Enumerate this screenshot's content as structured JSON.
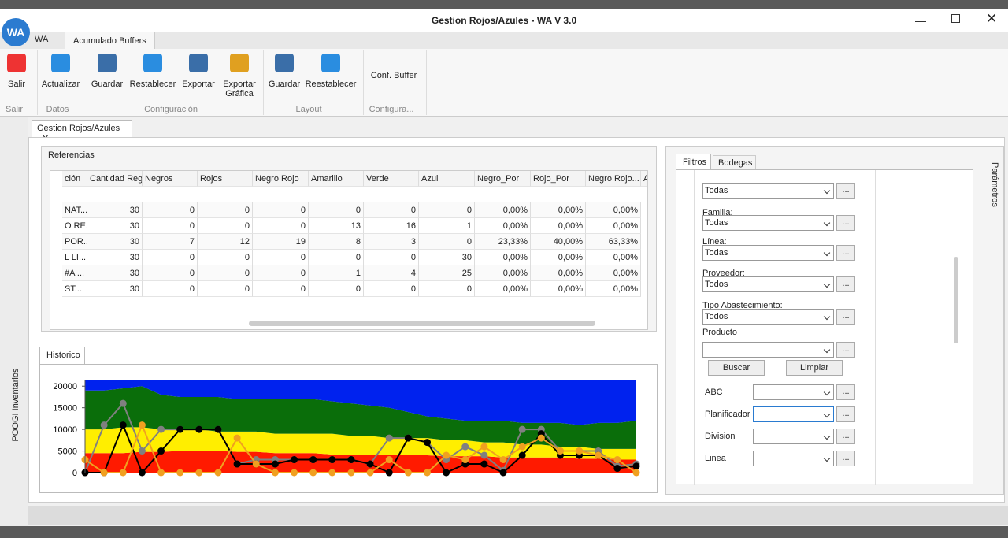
{
  "window": {
    "logo": "WA",
    "title": "Gestion Rojos/Azules - WA V 3.0"
  },
  "ribbon": {
    "tabs": [
      "WA",
      "Acumulado Buffers"
    ],
    "buttons": [
      "Salir",
      "Actualizar",
      "Guardar",
      "Restablecer",
      "Exportar",
      "Exportar Gráfica",
      "Guardar",
      "Reestablecer",
      "Conf. Buffer"
    ],
    "groups": [
      "Salir",
      "Datos",
      "Configuración",
      "Layout",
      "Configura..."
    ]
  },
  "sidebar": {
    "left": "POOGI Inventarios",
    "right": "Parámetros"
  },
  "document_tab": "Gestion Rojos/Azules",
  "referencias": {
    "title": "Referencias",
    "columns": [
      "ción",
      "Cantidad Reg",
      "Negros",
      "Rojos",
      "Negro Rojo",
      "Amarillo",
      "Verde",
      "Azul",
      "Negro_Por",
      "Rojo_Por",
      "Negro Rojo...",
      "A"
    ],
    "rows": [
      [
        "NAT...",
        "30",
        "0",
        "0",
        "0",
        "0",
        "0",
        "0",
        "0,00%",
        "0,00%",
        "0,00%"
      ],
      [
        "O RE...",
        "30",
        "0",
        "0",
        "0",
        "13",
        "16",
        "1",
        "0,00%",
        "0,00%",
        "0,00%"
      ],
      [
        "POR...",
        "30",
        "7",
        "12",
        "19",
        "8",
        "3",
        "0",
        "23,33%",
        "40,00%",
        "63,33%"
      ],
      [
        "L LI...",
        "30",
        "0",
        "0",
        "0",
        "0",
        "0",
        "30",
        "0,00%",
        "0,00%",
        "0,00%"
      ],
      [
        "#A ...",
        "30",
        "0",
        "0",
        "0",
        "1",
        "4",
        "25",
        "0,00%",
        "0,00%",
        "0,00%"
      ],
      [
        "ST...",
        "30",
        "0",
        "0",
        "0",
        "0",
        "0",
        "0",
        "0,00%",
        "0,00%",
        "0,00%"
      ]
    ]
  },
  "historico": {
    "title": "Historico"
  },
  "chart_data": {
    "type": "area",
    "stacked": true,
    "categories": [
      null,
      null,
      null,
      null,
      null,
      null,
      null,
      null,
      null,
      null,
      null,
      null,
      null,
      null,
      null,
      null,
      null,
      null,
      null,
      null,
      null,
      null,
      null,
      null,
      null,
      null,
      null,
      null,
      null,
      null
    ],
    "ylim": [
      0,
      21500
    ],
    "yticks": [
      0,
      5000,
      10000,
      15000,
      20000
    ],
    "series": [
      {
        "name": null,
        "color": "#ff1a00",
        "values": [
          4500,
          4500,
          4500,
          4800,
          4800,
          5000,
          5000,
          5000,
          4800,
          4800,
          4500,
          4500,
          4500,
          4200,
          4200,
          4000,
          4000,
          4000,
          4000,
          3800,
          3800,
          3800,
          3500,
          3500,
          3500,
          3500,
          3200,
          3200,
          3000,
          3000
        ]
      },
      {
        "name": null,
        "color": "#ffee00",
        "values": [
          5500,
          5500,
          6000,
          5700,
          5200,
          5000,
          5000,
          4500,
          4700,
          4700,
          4500,
          4500,
          4500,
          4800,
          4300,
          4500,
          4000,
          4000,
          4000,
          3700,
          3700,
          3200,
          3500,
          3000,
          3000,
          2500,
          2800,
          2300,
          2500,
          2500
        ]
      },
      {
        "name": null,
        "color": "#0a6e0a",
        "values": [
          9000,
          9000,
          9000,
          9500,
          8000,
          7500,
          7500,
          8000,
          7500,
          7500,
          8000,
          8000,
          8000,
          7500,
          7500,
          7000,
          7000,
          6000,
          5000,
          5000,
          4500,
          5000,
          5000,
          5000,
          5000,
          5500,
          5000,
          6000,
          6000,
          6500
        ]
      },
      {
        "name": null,
        "color": "#0022ee",
        "values": [
          2500,
          2500,
          2000,
          1500,
          3500,
          4000,
          4000,
          4000,
          4500,
          4500,
          4500,
          4500,
          4500,
          5000,
          5500,
          6000,
          6500,
          7500,
          8500,
          9000,
          9500,
          9500,
          9500,
          10000,
          10000,
          10000,
          10500,
          10000,
          10000,
          9500
        ]
      }
    ],
    "lines": [
      {
        "name": null,
        "color": "#808080",
        "values": [
          0,
          11000,
          16000,
          5000,
          10000,
          10000,
          10000,
          10000,
          2000,
          3000,
          3000,
          3000,
          3000,
          3000,
          3000,
          2000,
          8000,
          8000,
          7000,
          3000,
          6000,
          4000,
          500,
          10000,
          10000,
          5000,
          5000,
          5000,
          1500,
          2000
        ]
      },
      {
        "name": null,
        "color": "#000000",
        "values": [
          0,
          0,
          11000,
          0,
          5000,
          10000,
          10000,
          10000,
          2000,
          2000,
          2000,
          3000,
          3000,
          3000,
          3000,
          2000,
          0,
          8000,
          7000,
          0,
          2000,
          2000,
          0,
          4000,
          9000,
          4000,
          4000,
          4000,
          1000,
          1500
        ]
      },
      {
        "name": null,
        "color": "#f0a020",
        "values": [
          3000,
          0,
          0,
          11000,
          0,
          0,
          0,
          0,
          8000,
          2000,
          0,
          0,
          0,
          0,
          0,
          0,
          3000,
          0,
          0,
          4000,
          3000,
          6000,
          3000,
          6000,
          8000,
          5000,
          5000,
          4000,
          3000,
          0
        ]
      }
    ]
  },
  "filters": {
    "tabs": [
      "Filtros",
      "Bodegas"
    ],
    "first_select": "Todas",
    "fields": [
      {
        "label": "Familia:",
        "value": "Todas"
      },
      {
        "label": "Línea:",
        "value": "Todas"
      },
      {
        "label": "Proveedor:",
        "value": "Todos"
      },
      {
        "label": "Tipo Abastecimiento:",
        "value": "Todos"
      }
    ],
    "product_label": "Producto",
    "buttons": [
      "Buscar",
      "Limpiar"
    ],
    "extra_fields": [
      "ABC",
      "Planificador",
      "Division",
      "Linea"
    ],
    "ellipsis": "..."
  }
}
